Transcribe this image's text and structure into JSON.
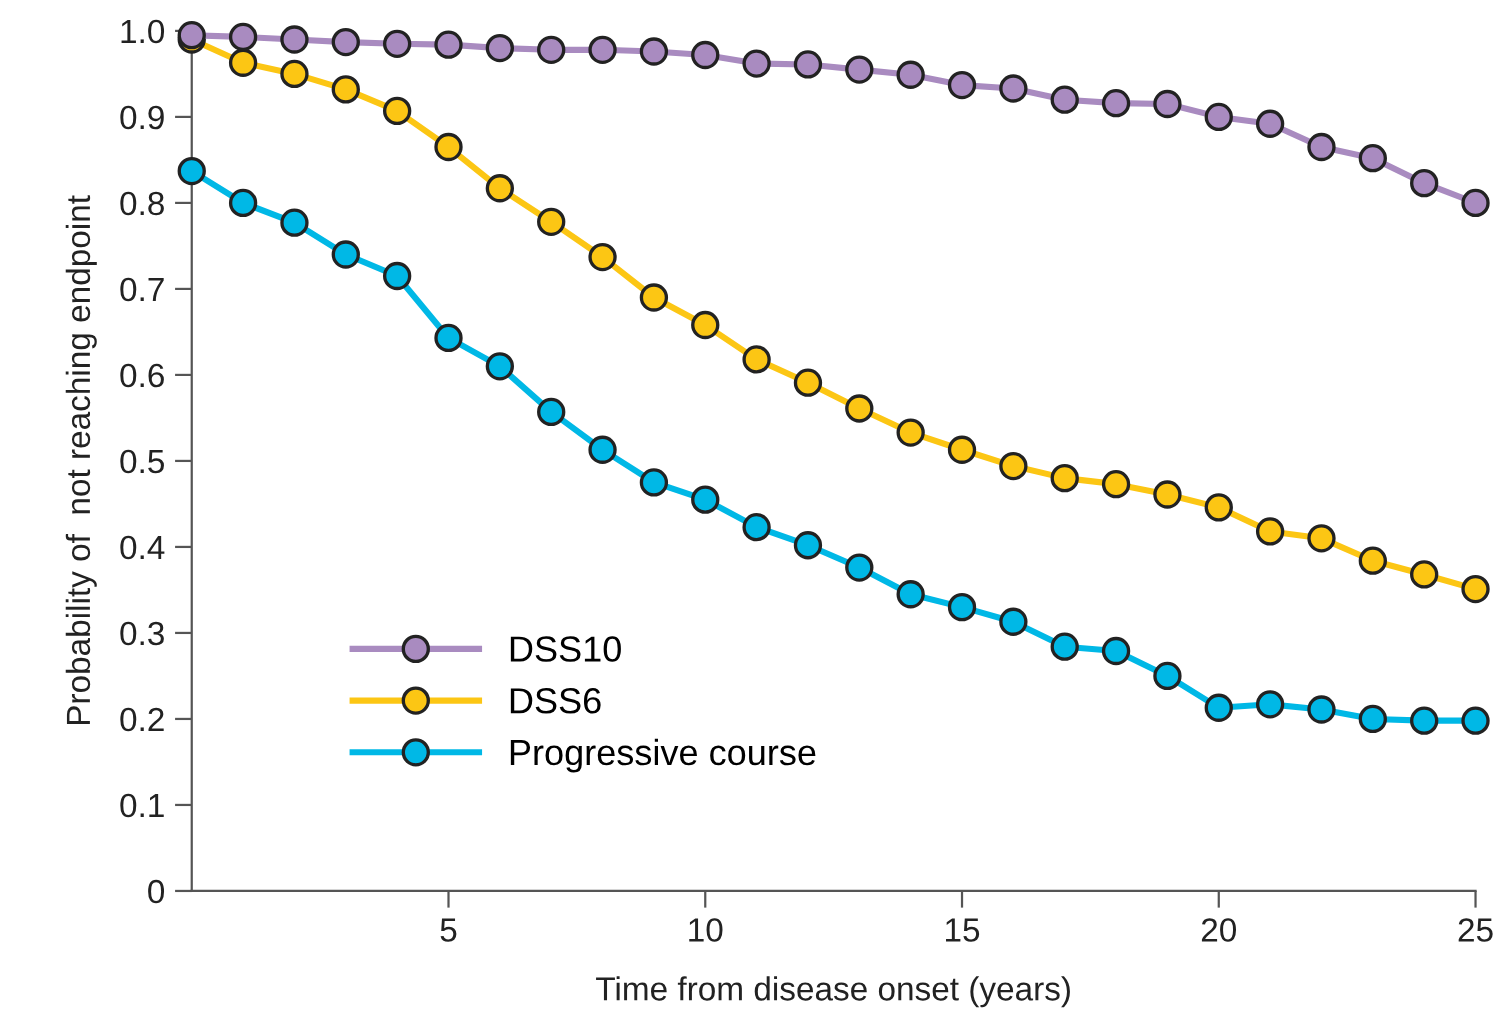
{
  "chart_data": {
    "type": "line",
    "xlabel": "Time from disease onset (years)",
    "ylabel": "Probability of  not reaching endpoint",
    "x": [
      0,
      1,
      2,
      3,
      4,
      5,
      6,
      7,
      8,
      9,
      10,
      11,
      12,
      13,
      14,
      15,
      16,
      17,
      18,
      19,
      20,
      21,
      22,
      23,
      24,
      25
    ],
    "series": [
      {
        "name": "DSS10",
        "color": "#a98bc0",
        "values": [
          0.995,
          0.993,
          0.99,
          0.987,
          0.985,
          0.984,
          0.98,
          0.978,
          0.978,
          0.976,
          0.972,
          0.962,
          0.961,
          0.955,
          0.949,
          0.937,
          0.933,
          0.92,
          0.916,
          0.915,
          0.9,
          0.892,
          0.865,
          0.852,
          0.823,
          0.8
        ]
      },
      {
        "name": "DSS6",
        "color": "#fcc614",
        "values": [
          0.99,
          0.963,
          0.95,
          0.932,
          0.907,
          0.865,
          0.817,
          0.778,
          0.737,
          0.69,
          0.658,
          0.618,
          0.591,
          0.561,
          0.533,
          0.513,
          0.494,
          0.48,
          0.473,
          0.461,
          0.446,
          0.418,
          0.41,
          0.384,
          0.368,
          0.351
        ]
      },
      {
        "name": "Progressive course",
        "color": "#00b8e6",
        "values": [
          0.837,
          0.8,
          0.777,
          0.74,
          0.715,
          0.643,
          0.61,
          0.557,
          0.513,
          0.475,
          0.455,
          0.423,
          0.402,
          0.376,
          0.345,
          0.33,
          0.313,
          0.284,
          0.279,
          0.25,
          0.213,
          0.217,
          0.211,
          0.2,
          0.198,
          0.198
        ]
      }
    ],
    "xlim": [
      0,
      25
    ],
    "ylim": [
      0,
      1.0
    ],
    "xticks": [
      5,
      10,
      15,
      20,
      25
    ],
    "yticks": [
      0,
      0.1,
      0.2,
      0.3,
      0.4,
      0.5,
      0.6,
      0.7,
      0.8,
      0.9,
      {
        "value": 1.0,
        "label": "1.0"
      }
    ],
    "marker": "circle",
    "line_style": "solid",
    "grid": false,
    "legend": "bottom left"
  }
}
